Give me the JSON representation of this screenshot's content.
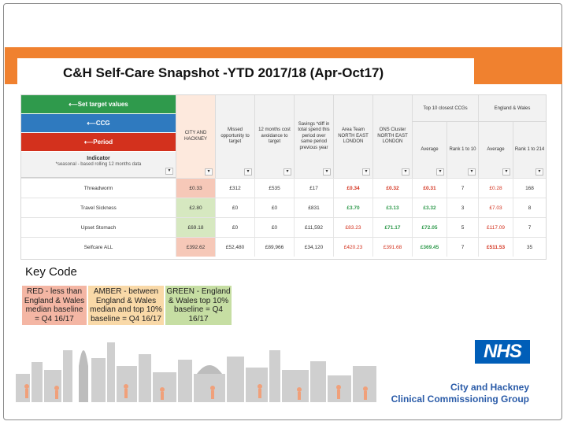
{
  "slide": {
    "title": "C&H Self-Care Snapshot -YTD 2017/18 (Apr-Oct17)"
  },
  "colors": {
    "orange_band": "#f0812f",
    "set_target_green": "#2f9a4c",
    "ccg_blue": "#2f7abf",
    "period_red": "#d3311d",
    "key_red": "#f4b6a4",
    "key_amber": "#f9d9a8",
    "key_green": "#c6dea3",
    "nhs_blue": "#005eb8"
  },
  "table": {
    "controls": {
      "set_target": "⟵Set target values",
      "ccg": "⟵CCG",
      "period": "⟵Period"
    },
    "indicator_title": "Indicator",
    "indicator_sub": "*seasonal - based rolling 12 months data",
    "columns": {
      "city": "CITY AND HACKNEY",
      "missed": "Missed opportunity to target",
      "avoid": "12 months cost avoidance to target",
      "savings": "Savings *diff in total spend this period over same period previous year",
      "area": "Area Team NORTH EAST LONDON",
      "ons": "ONS Cluster NORTH EAST LONDON",
      "top10_group": "Top 10 closest CCGs",
      "ew_group": "England & Wales",
      "avg1": "Average",
      "rank1": "Rank 1 to 10",
      "avg2": "Average",
      "rank2": "Rank 1 to 214"
    },
    "rows": [
      {
        "name": "Threadworm",
        "city": "£0.33",
        "missed": "£312",
        "avoid": "£535",
        "savings": "£17",
        "area": "£0.34",
        "ons": "£0.32",
        "avg1": "£0.31",
        "rank1": "7",
        "avg2": "£0.28",
        "rank2": "168",
        "city_bg": "#f6c8b8",
        "area_cls": "red-t",
        "ons_cls": "red-t",
        "avg1_cls": "red-t",
        "avg2_cls": "amber-t"
      },
      {
        "name": "Travel Sickness",
        "city": "£2.80",
        "missed": "£0",
        "avoid": "£0",
        "savings": "£831",
        "area": "£3.70",
        "ons": "£3.13",
        "avg1": "£3.32",
        "rank1": "3",
        "avg2": "£7.03",
        "rank2": "8",
        "city_bg": "#d6e8c0",
        "area_cls": "green-t",
        "ons_cls": "green-t",
        "avg1_cls": "green-t",
        "avg2_cls": "amber-t"
      },
      {
        "name": "Upset Stomach",
        "city": "£69.18",
        "missed": "£0",
        "avoid": "£0",
        "savings": "£11,592",
        "area": "£83.23",
        "ons": "£71.17",
        "avg1": "£72.05",
        "rank1": "5",
        "avg2": "£117.09",
        "rank2": "7",
        "city_bg": "#d6e8c0",
        "area_cls": "amber-t",
        "ons_cls": "green-t",
        "avg1_cls": "green-t",
        "avg2_cls": "amber-t"
      },
      {
        "name": "Selfcare ALL",
        "city": "£392.62",
        "missed": "£52,480",
        "avoid": "£89,966",
        "savings": "£34,120",
        "area": "£420.23",
        "ons": "£391.68",
        "avg1": "£369.45",
        "rank1": "7",
        "avg2": "£511.53",
        "rank2": "35",
        "city_bg": "#f6c8b8",
        "area_cls": "amber-t",
        "ons_cls": "amber-t",
        "avg1_cls": "green-t",
        "avg2_cls": "red-t"
      }
    ]
  },
  "key": {
    "title": "Key Code",
    "red": "RED - less than England & Wales median baseline = Q4 16/17",
    "amber": "AMBER - between England & Wales median and top 10% baseline = Q4 16/17",
    "green": "GREEN - England & Wales top 10% baseline = Q4 16/17"
  },
  "logo": {
    "nhs": "NHS",
    "line1": "City and Hackney",
    "line2": "Clinical Commissioning Group"
  }
}
